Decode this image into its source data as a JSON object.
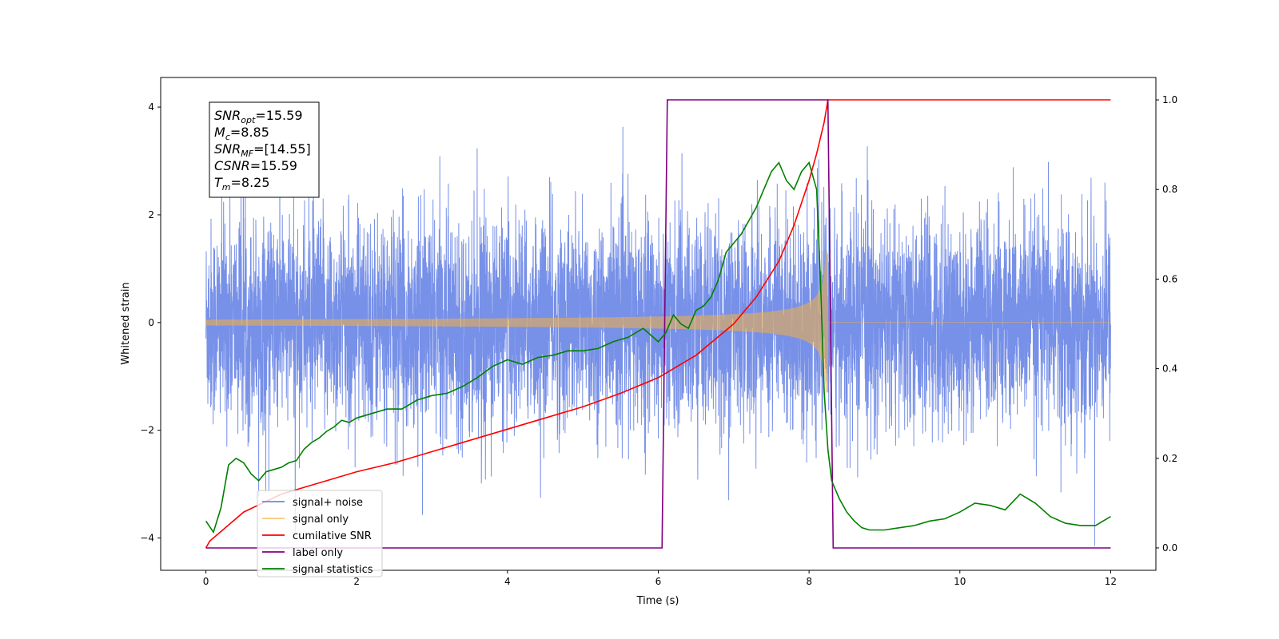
{
  "chart_data": {
    "type": "line",
    "xlabel": "Time (s)",
    "ylabel": "Whitened strain",
    "xlim": [
      -0.6,
      12.6
    ],
    "ylim_left": [
      -4.6,
      4.55
    ],
    "ylim_right": [
      -0.05,
      1.05
    ],
    "xticks": [
      0,
      2,
      4,
      6,
      8,
      10,
      12
    ],
    "yticks_left": [
      -4,
      -2,
      0,
      2,
      4
    ],
    "yticks_right": [
      0.0,
      0.2,
      0.4,
      0.6,
      0.8,
      1.0
    ],
    "legend_position": "lower-left",
    "stats_box": [
      {
        "base": "SNR",
        "sub": "opt",
        "value": "=15.59"
      },
      {
        "base": "M",
        "sub": "c",
        "value": "=8.85"
      },
      {
        "base": "SNR",
        "sub": "MF",
        "value": "=[14.55]"
      },
      {
        "base": "CSNR",
        "sub": "",
        "value": "=15.59"
      },
      {
        "base": "T",
        "sub": "m",
        "value": "=8.25"
      }
    ],
    "series": [
      {
        "name": "signal+ noise",
        "axis": "left",
        "color": "#6b87e6",
        "description_kind": "noise",
        "x_range": [
          0,
          12
        ],
        "std": 0.95
      },
      {
        "name": "signal only",
        "axis": "left",
        "color": "#f5b041",
        "description_kind": "chirp",
        "x_range": [
          0,
          12
        ],
        "merger_time": 8.25
      },
      {
        "name": "cumilative SNR",
        "axis": "right",
        "color": "#ff0000",
        "x": [
          0,
          0.05,
          0.5,
          1,
          1.5,
          2,
          2.5,
          3,
          3.5,
          4,
          4.5,
          5,
          5.5,
          6,
          6.5,
          7,
          7.3,
          7.6,
          7.8,
          8.0,
          8.1,
          8.2,
          8.25,
          9,
          10,
          11,
          12
        ],
        "y": [
          0.0,
          0.015,
          0.08,
          0.12,
          0.145,
          0.17,
          0.19,
          0.215,
          0.24,
          0.265,
          0.29,
          0.315,
          0.345,
          0.38,
          0.43,
          0.5,
          0.56,
          0.64,
          0.72,
          0.82,
          0.88,
          0.95,
          1.0,
          1.0,
          1.0,
          1.0,
          1.0
        ]
      },
      {
        "name": "label only",
        "axis": "right",
        "color": "#800080",
        "x": [
          0,
          6.05,
          6.12,
          8.25,
          8.32,
          12
        ],
        "y": [
          0,
          0,
          1,
          1,
          0,
          0
        ]
      },
      {
        "name": "signal statistics",
        "axis": "right",
        "color": "#008000",
        "x": [
          0,
          0.1,
          0.2,
          0.3,
          0.4,
          0.5,
          0.6,
          0.7,
          0.8,
          0.9,
          1.0,
          1.1,
          1.2,
          1.3,
          1.4,
          1.5,
          1.6,
          1.7,
          1.8,
          1.9,
          2.0,
          2.2,
          2.4,
          2.6,
          2.8,
          3.0,
          3.2,
          3.4,
          3.6,
          3.8,
          4.0,
          4.2,
          4.4,
          4.6,
          4.8,
          5.0,
          5.2,
          5.4,
          5.6,
          5.8,
          6.0,
          6.1,
          6.2,
          6.3,
          6.4,
          6.5,
          6.6,
          6.7,
          6.8,
          6.9,
          7.0,
          7.1,
          7.2,
          7.3,
          7.4,
          7.5,
          7.6,
          7.7,
          7.8,
          7.9,
          8.0,
          8.1,
          8.15,
          8.2,
          8.25,
          8.3,
          8.4,
          8.5,
          8.6,
          8.7,
          8.8,
          9.0,
          9.2,
          9.4,
          9.6,
          9.8,
          10.0,
          10.2,
          10.4,
          10.6,
          10.8,
          11.0,
          11.2,
          11.4,
          11.6,
          11.8,
          12.0
        ],
        "y": [
          0.06,
          0.035,
          0.09,
          0.185,
          0.2,
          0.19,
          0.165,
          0.15,
          0.17,
          0.175,
          0.18,
          0.19,
          0.195,
          0.22,
          0.235,
          0.245,
          0.26,
          0.27,
          0.285,
          0.28,
          0.29,
          0.3,
          0.31,
          0.31,
          0.33,
          0.34,
          0.345,
          0.36,
          0.38,
          0.405,
          0.42,
          0.41,
          0.425,
          0.43,
          0.44,
          0.44,
          0.445,
          0.46,
          0.47,
          0.49,
          0.46,
          0.48,
          0.52,
          0.5,
          0.49,
          0.53,
          0.54,
          0.56,
          0.6,
          0.66,
          0.68,
          0.7,
          0.73,
          0.76,
          0.8,
          0.84,
          0.86,
          0.82,
          0.8,
          0.84,
          0.86,
          0.8,
          0.6,
          0.35,
          0.22,
          0.15,
          0.11,
          0.08,
          0.06,
          0.045,
          0.04,
          0.04,
          0.045,
          0.05,
          0.06,
          0.065,
          0.08,
          0.1,
          0.095,
          0.085,
          0.12,
          0.1,
          0.07,
          0.055,
          0.05,
          0.05,
          0.07
        ]
      }
    ]
  }
}
